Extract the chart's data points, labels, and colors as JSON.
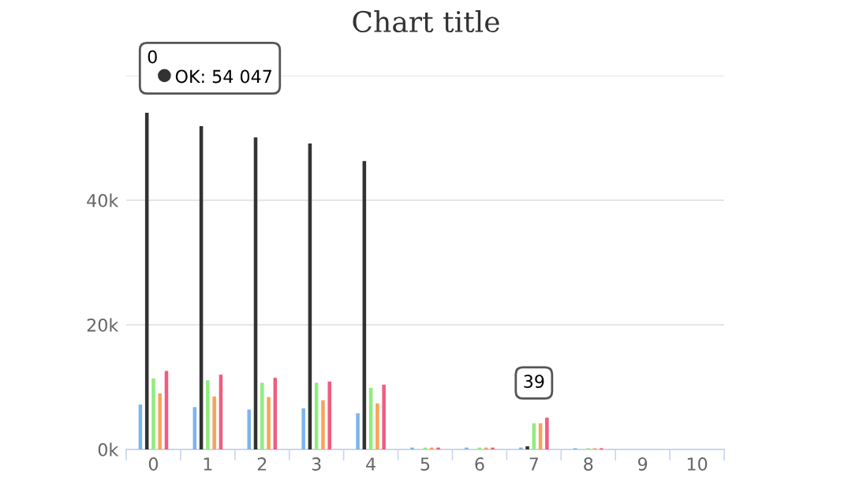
{
  "chart_data": {
    "type": "bar",
    "title": "Chart title",
    "categories": [
      "0",
      "1",
      "2",
      "3",
      "4",
      "5",
      "6",
      "7",
      "8",
      "9",
      "10"
    ],
    "series": [
      {
        "color": "#7cb5ec",
        "values": [
          7200,
          6800,
          6400,
          6600,
          5800,
          300,
          300,
          300,
          200,
          0,
          0
        ]
      },
      {
        "name": "OK",
        "color": "#333333",
        "values": [
          54047,
          51900,
          50100,
          49100,
          46300,
          0,
          0,
          500,
          0,
          0,
          0
        ],
        "value_labels": [
          ": 54 047",
          null,
          null,
          null,
          null,
          null,
          null,
          null,
          null,
          null,
          null
        ]
      },
      {
        "color": "#90ed7d",
        "values": [
          11400,
          11100,
          10700,
          10700,
          9900,
          300,
          300,
          4200,
          200,
          0,
          0
        ]
      },
      {
        "color": "#f7a35c",
        "values": [
          9000,
          8500,
          8400,
          7900,
          7400,
          300,
          300,
          4200,
          200,
          0,
          0
        ]
      },
      {
        "color": "#f15c80",
        "values": [
          12600,
          12000,
          11500,
          10900,
          10400,
          300,
          300,
          5100,
          200,
          0,
          0
        ]
      }
    ],
    "ylim": [
      0,
      60000
    ],
    "yticks": [
      {
        "value": 0,
        "label": "0k"
      },
      {
        "value": 20000,
        "label": "20k"
      },
      {
        "value": 40000,
        "label": "40k"
      },
      {
        "value": 60000,
        "label": null
      }
    ],
    "grid": "y",
    "annotations": [
      {
        "text": "39",
        "x": "7",
        "y": 5100
      }
    ]
  }
}
